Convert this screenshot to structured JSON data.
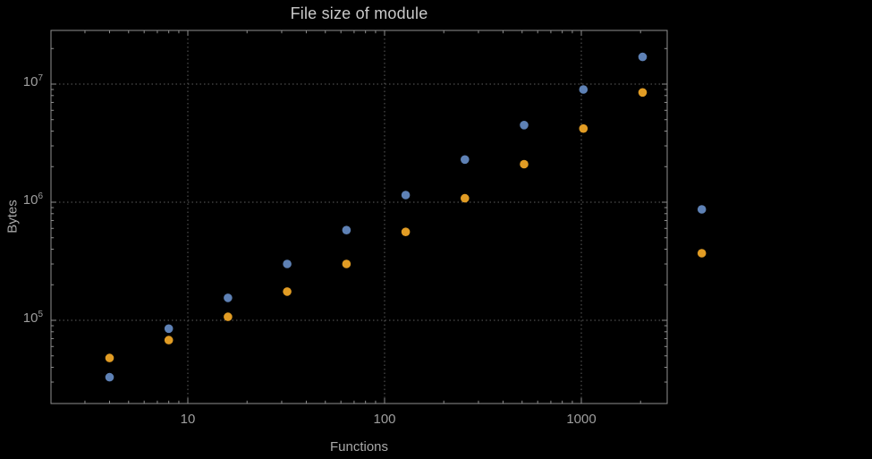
{
  "colors": {
    "background": "#000000",
    "frame": "#8f8f8f",
    "grid": "#5e5e5e",
    "title_text": "#c9c9c9",
    "axis_label_text": "#a8a8a8",
    "tick_label_text": "#9e9e9e"
  },
  "chart_data": {
    "type": "scatter",
    "title": "File size of module",
    "xlabel": "Functions",
    "ylabel": "Bytes",
    "x_scale": "log",
    "y_scale": "log",
    "grid": "dotted",
    "legend": "none",
    "x_range": [
      2,
      2730
    ],
    "y_range": [
      20000,
      28500000
    ],
    "x_ticks": [
      {
        "value": 10,
        "label": "10"
      },
      {
        "value": 100,
        "label": "100"
      },
      {
        "value": 1000,
        "label": "1000"
      }
    ],
    "y_ticks": [
      {
        "value": 100000,
        "base": "10",
        "exp": "5"
      },
      {
        "value": 1000000,
        "base": "10",
        "exp": "6"
      },
      {
        "value": 10000000,
        "base": "10",
        "exp": "7"
      }
    ],
    "series": [
      {
        "color": "#5E81B5",
        "points": [
          [
            4,
            33000
          ],
          [
            8,
            85000
          ],
          [
            16,
            155000
          ],
          [
            32,
            300000
          ],
          [
            64,
            580000
          ],
          [
            128,
            1150000
          ],
          [
            256,
            2300000
          ],
          [
            512,
            4500000
          ],
          [
            1024,
            9000000
          ],
          [
            2048,
            17000000
          ],
          [
            4096,
            870000
          ]
        ]
      },
      {
        "color": "#E19C24",
        "points": [
          [
            4,
            48000
          ],
          [
            8,
            68000
          ],
          [
            16,
            107000
          ],
          [
            32,
            175000
          ],
          [
            64,
            300000
          ],
          [
            128,
            560000
          ],
          [
            256,
            1080000
          ],
          [
            512,
            2100000
          ],
          [
            1024,
            4200000
          ],
          [
            2048,
            8500000
          ],
          [
            4096,
            370000
          ]
        ]
      }
    ]
  }
}
